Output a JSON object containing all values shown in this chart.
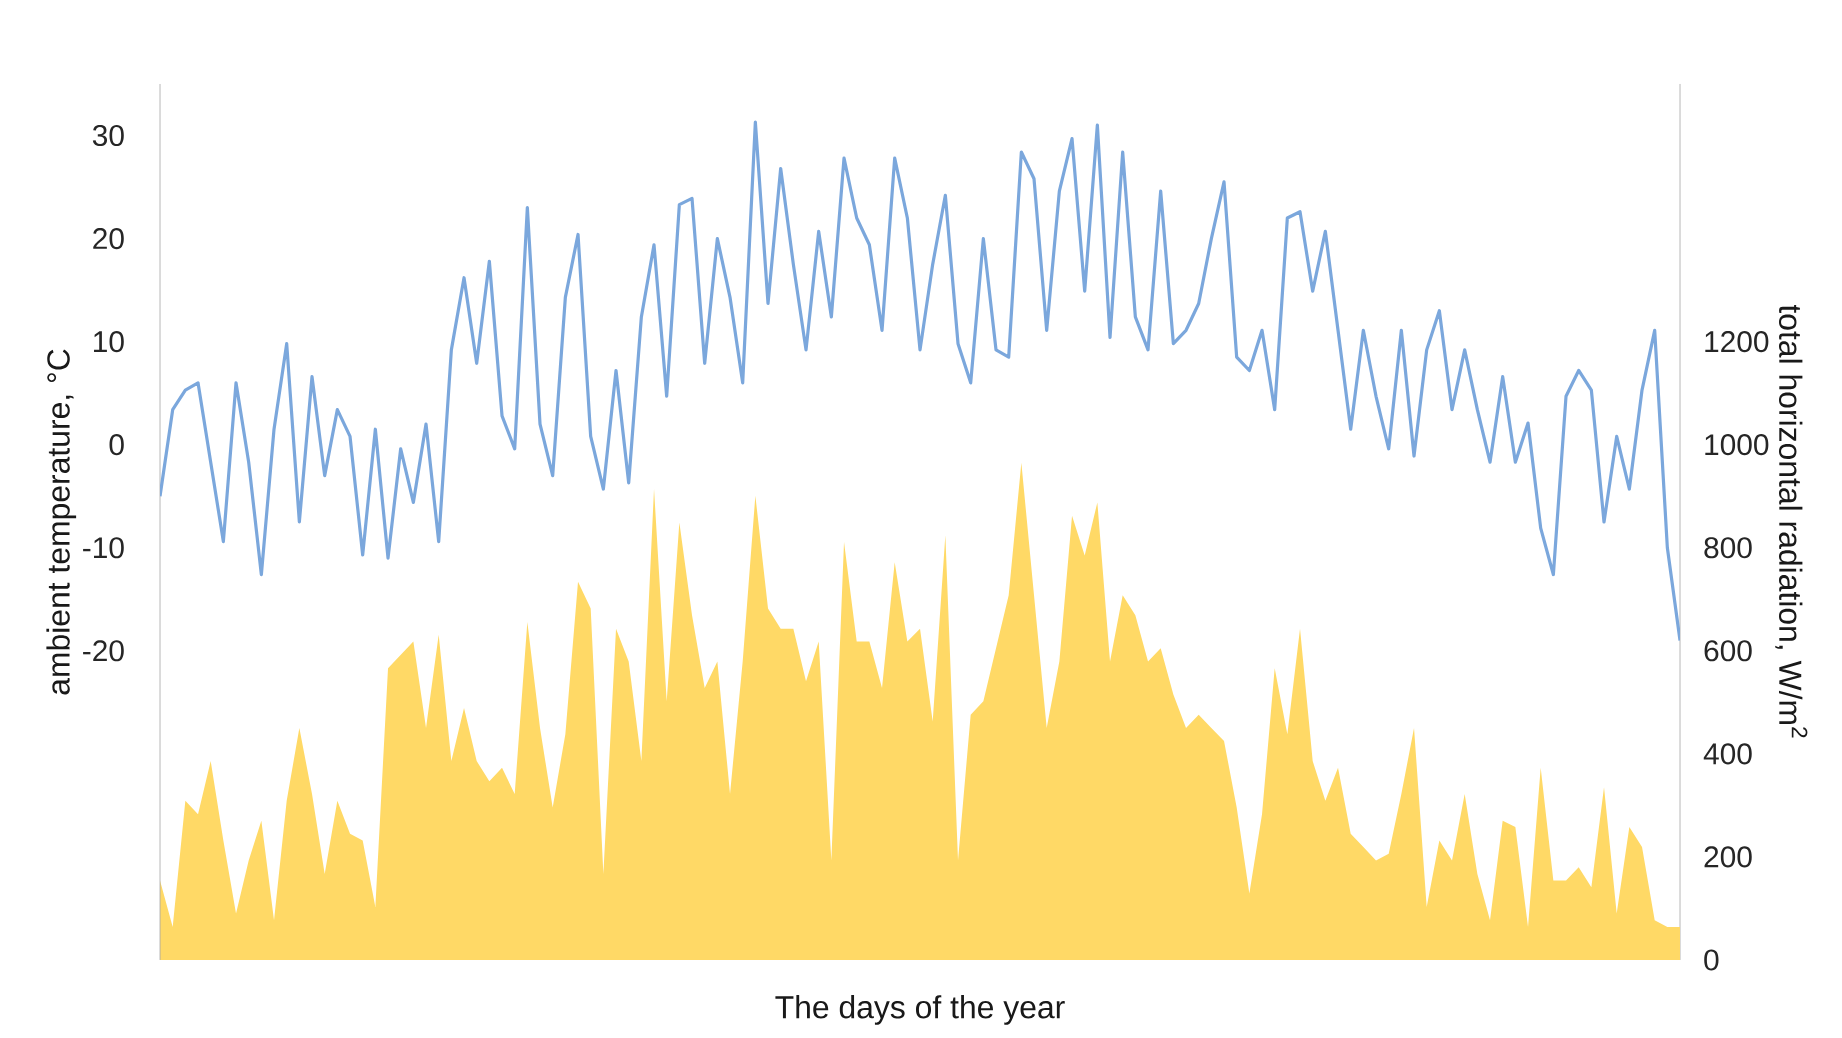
{
  "chart_data": {
    "type": "line",
    "xlabel": "The days of the year",
    "ylabel": "ambient temperature, °C",
    "y2label": "total horizontal radiation, W/m$^{2}$",
    "categories": [
      null,
      null,
      null,
      null,
      null,
      null,
      null,
      null,
      null,
      null,
      null,
      null,
      null,
      null,
      null,
      null,
      null,
      null,
      null,
      null,
      null,
      null,
      null,
      null,
      null,
      null,
      null,
      null,
      null,
      null,
      null,
      null,
      null,
      null,
      null,
      null,
      null,
      null,
      null,
      null,
      null,
      null,
      null,
      null,
      null,
      null,
      null,
      null,
      null,
      null,
      null,
      null,
      null,
      null,
      null,
      null,
      null,
      null,
      null,
      null,
      null,
      null,
      null,
      null,
      null,
      null,
      null,
      null,
      null,
      null,
      null,
      null,
      null,
      null,
      null,
      null,
      null,
      null,
      null,
      null,
      null,
      null,
      null,
      null,
      null,
      null,
      null,
      null,
      null,
      null,
      null,
      null,
      null,
      null,
      null,
      null,
      null,
      null,
      null,
      null,
      null,
      null,
      null,
      null,
      null,
      null,
      null,
      null,
      null,
      null,
      null,
      null,
      null,
      null,
      null,
      null,
      null,
      null,
      null,
      null,
      null
    ],
    "ylim": [
      -50,
      35
    ],
    "yticks": [
      -20,
      -10,
      0,
      10,
      20,
      30
    ],
    "y2lim": [
      0,
      1700
    ],
    "y2ticks": [
      0,
      200,
      400,
      600,
      800,
      1000,
      1200
    ],
    "series": [
      {
        "type": "area",
        "axis": "y2",
        "color": "#ffd966",
        "values": [
          154,
          64,
          309,
          283,
          386,
          232,
          90,
          193,
          270,
          77,
          309,
          450,
          322,
          167,
          309,
          245,
          232,
          103,
          566,
          592,
          618,
          450,
          631,
          386,
          489,
          386,
          347,
          373,
          322,
          656,
          450,
          296,
          438,
          734,
          682,
          167,
          643,
          579,
          386,
          914,
          502,
          849,
          669,
          528,
          579,
          322,
          579,
          901,
          682,
          643,
          643,
          541,
          618,
          193,
          811,
          618,
          618,
          528,
          772,
          618,
          643,
          463,
          824,
          193,
          476,
          502,
          605,
          708,
          965,
          708,
          450,
          579,
          862,
          785,
          888,
          579,
          708,
          669,
          579,
          605,
          515,
          450,
          476,
          450,
          425,
          296,
          129,
          283,
          566,
          438,
          643,
          386,
          309,
          373,
          245,
          219,
          193,
          206,
          322,
          450,
          103,
          232,
          193,
          322,
          167,
          77,
          270,
          258,
          64,
          373,
          154,
          154,
          180,
          141,
          335,
          90,
          258,
          219,
          77,
          64,
          64
        ]
      },
      {
        "color": "#7ba7dc",
        "values": [
          -5,
          3.4,
          5.3,
          6,
          -1.7,
          -9.4,
          6,
          -1.7,
          -12.6,
          1.5,
          9.8,
          -7.5,
          6.6,
          -3,
          3.4,
          0.8,
          -10.7,
          1.5,
          -11,
          -0.4,
          -5.6,
          2,
          -9.4,
          9.2,
          16.2,
          7.9,
          17.8,
          2.8,
          -0.4,
          23,
          2,
          -3,
          14.3,
          20.4,
          0.8,
          -4.3,
          7.2,
          -3.7,
          12.4,
          19.4,
          4.7,
          23.3,
          23.9,
          7.9,
          20,
          14.3,
          6,
          31.3,
          13.7,
          26.8,
          17.5,
          9.2,
          20.7,
          12.4,
          27.8,
          22,
          19.4,
          11.1,
          27.8,
          22,
          9.2,
          17.5,
          24.2,
          9.8,
          6,
          20,
          9.2,
          8.5,
          28.4,
          25.8,
          11.1,
          24.6,
          29.7,
          14.9,
          31,
          10.4,
          28.4,
          12.4,
          9.2,
          24.6,
          9.8,
          11.1,
          13.7,
          20,
          25.5,
          8.5,
          7.2,
          11.1,
          3.4,
          22,
          22.6,
          14.9,
          20.7,
          11.1,
          1.5,
          11.1,
          4.7,
          -0.4,
          11.1,
          -1.1,
          9.2,
          13,
          3.4,
          9.2,
          3.4,
          -1.7,
          6.6,
          -1.7,
          2.1,
          -8.1,
          -12.6,
          4.7,
          7.2,
          5.3,
          -7.5,
          0.8,
          -4.3,
          5.3,
          11.1,
          -10,
          -19
        ]
      }
    ]
  }
}
